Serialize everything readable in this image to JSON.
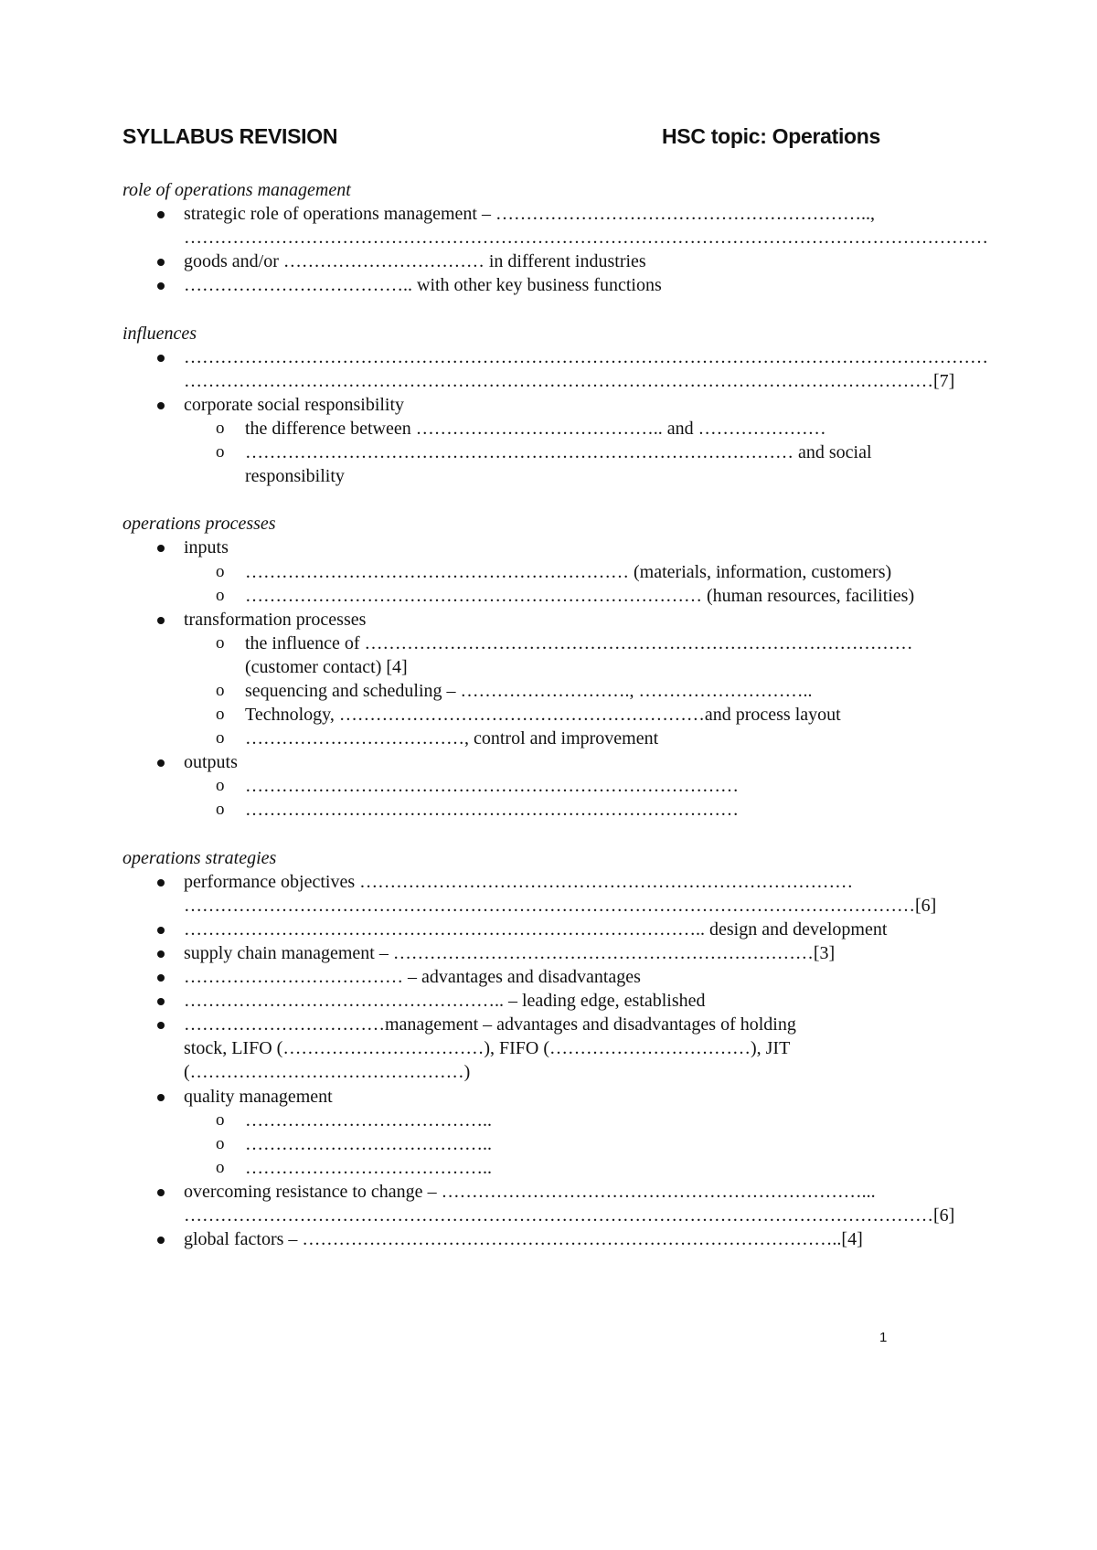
{
  "header": {
    "left": "SYLLABUS REVISION",
    "right": "HSC topic: Operations"
  },
  "sections": [
    {
      "heading": "role of operations management",
      "items": [
        {
          "level": 1,
          "lines": [
            "strategic role of operations management – ……………………………………………………..,",
            "……………………………………………………………………………………………………………………"
          ]
        },
        {
          "level": 1,
          "lines": [
            "goods and/or …………………………… in different industries"
          ]
        },
        {
          "level": 1,
          "lines": [
            "……………………………….. with other key business functions"
          ]
        }
      ]
    },
    {
      "heading": "influences",
      "items": [
        {
          "level": 1,
          "lines": [
            "……………………………………………………………………………………………………………………",
            "……………………………………………………………………………………………………………[7]"
          ]
        },
        {
          "level": 1,
          "lines": [
            "corporate social responsibility"
          ]
        },
        {
          "level": 2,
          "lines": [
            "the difference between ………………………………….. and …………………"
          ]
        },
        {
          "level": 2,
          "lines": [
            "……………………………………………………………………………… and social",
            "responsibility"
          ]
        }
      ]
    },
    {
      "heading": "operations processes",
      "items": [
        {
          "level": 1,
          "lines": [
            "inputs"
          ]
        },
        {
          "level": 2,
          "lines": [
            "……………………………………………………… (materials, information, customers)"
          ]
        },
        {
          "level": 2,
          "lines": [
            "………………………………………………………………… (human resources, facilities)"
          ]
        },
        {
          "level": 1,
          "lines": [
            "transformation processes"
          ]
        },
        {
          "level": 2,
          "lines": [
            "the influence of ………………………………………………………………………………",
            "(customer contact) [4]"
          ]
        },
        {
          "level": 2,
          "lines": [
            "sequencing and scheduling – ………………………., ……………………….."
          ]
        },
        {
          "level": 2,
          "lines": [
            "Technology, ……………………………………………………and process layout"
          ]
        },
        {
          "level": 2,
          "lines": [
            "………………………………, control and improvement"
          ]
        },
        {
          "level": 1,
          "lines": [
            "outputs"
          ]
        },
        {
          "level": 2,
          "lines": [
            "………………………………………………………………………"
          ]
        },
        {
          "level": 2,
          "lines": [
            "………………………………………………………………………"
          ]
        }
      ]
    },
    {
      "heading": "operations strategies",
      "items": [
        {
          "level": 1,
          "lines": [
            "performance objectives ………………………………………………………………………",
            "…………………………………………………………………………………………………………[6]"
          ]
        },
        {
          "level": 1,
          "lines": [
            "………………………………………………………………………….. design and development"
          ]
        },
        {
          "level": 1,
          "lines": [
            "supply chain management – ……………………………………………………………[3]"
          ]
        },
        {
          "level": 1,
          "lines": [
            "……………………………… – advantages and disadvantages"
          ]
        },
        {
          "level": 1,
          "lines": [
            "…………………………………………….. – leading edge, established"
          ]
        },
        {
          "level": 1,
          "lines": [
            "……………………………management – advantages and disadvantages of holding",
            "stock, LIFO (……………………………), FIFO (……………………………), JIT",
            "(………………………………………)"
          ]
        },
        {
          "level": 1,
          "lines": [
            "quality management"
          ]
        },
        {
          "level": 2,
          "lines": [
            "………………………………….."
          ]
        },
        {
          "level": 2,
          "lines": [
            "………………………………….."
          ]
        },
        {
          "level": 2,
          "lines": [
            "………………………………….."
          ]
        },
        {
          "level": 1,
          "lines": [
            "overcoming resistance to change – ……………………………………………………………...",
            "……………………………………………………………………………………………………………[6]"
          ]
        },
        {
          "level": 1,
          "lines": [
            "global factors – ……………………………………………………………………………..[4]"
          ]
        }
      ]
    }
  ],
  "footer": {
    "page_number": "1"
  }
}
